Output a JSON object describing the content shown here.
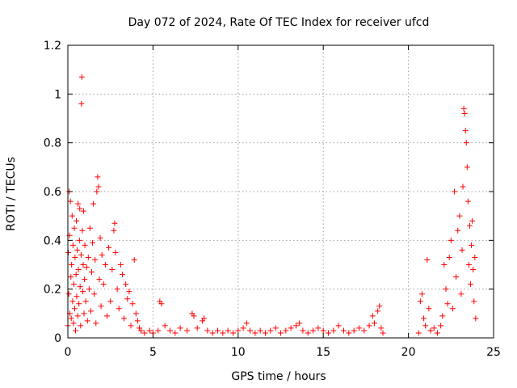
{
  "chart_data": {
    "type": "scatter",
    "title": "Day 072 of 2024, Rate Of TEC Index for receiver ufcd",
    "xlabel": "GPS time / hours",
    "ylabel": "ROTI / TECUs",
    "xlim": [
      0,
      25
    ],
    "ylim": [
      0,
      1.2
    ],
    "xticks": [
      0,
      5,
      10,
      15,
      20,
      25
    ],
    "yticks": [
      0,
      0.2,
      0.4,
      0.6,
      0.8,
      1,
      1.2
    ],
    "xtick_labels": [
      "0",
      "5",
      "10",
      "15",
      "20",
      "25"
    ],
    "ytick_labels": [
      "0",
      "0.2",
      "0.4",
      "0.6",
      "0.8",
      "1",
      "1.2"
    ],
    "grid": true,
    "marker": "+",
    "color": "#ff0000",
    "series": [
      {
        "name": "ROTI",
        "points": [
          [
            0.0,
            0.05
          ],
          [
            0.03,
            0.35
          ],
          [
            0.05,
            0.18
          ],
          [
            0.08,
            0.6
          ],
          [
            0.1,
            0.42
          ],
          [
            0.12,
            0.1
          ],
          [
            0.15,
            0.56
          ],
          [
            0.18,
            0.25
          ],
          [
            0.2,
            0.08
          ],
          [
            0.22,
            0.3
          ],
          [
            0.25,
            0.5
          ],
          [
            0.28,
            0.15
          ],
          [
            0.3,
            0.38
          ],
          [
            0.33,
            0.06
          ],
          [
            0.35,
            0.22
          ],
          [
            0.38,
            0.45
          ],
          [
            0.4,
            0.12
          ],
          [
            0.42,
            0.33
          ],
          [
            0.45,
            0.03
          ],
          [
            0.48,
            0.26
          ],
          [
            0.5,
            0.48
          ],
          [
            0.52,
            0.17
          ],
          [
            0.55,
            0.36
          ],
          [
            0.58,
            0.09
          ],
          [
            0.6,
            0.55
          ],
          [
            0.62,
            0.28
          ],
          [
            0.65,
            0.14
          ],
          [
            0.68,
            0.4
          ],
          [
            0.7,
            0.53
          ],
          [
            0.72,
            0.21
          ],
          [
            0.75,
            0.05
          ],
          [
            0.78,
            0.34
          ],
          [
            0.8,
            0.96
          ],
          [
            0.82,
            1.07
          ],
          [
            0.85,
            0.44
          ],
          [
            0.88,
            0.19
          ],
          [
            0.9,
            0.3
          ],
          [
            0.92,
            0.52
          ],
          [
            0.95,
            0.1
          ],
          [
            0.98,
            0.24
          ],
          [
            1.0,
            0.38
          ],
          [
            1.05,
            0.15
          ],
          [
            1.1,
            0.29
          ],
          [
            1.15,
            0.07
          ],
          [
            1.2,
            0.33
          ],
          [
            1.25,
            0.2
          ],
          [
            1.3,
            0.45
          ],
          [
            1.35,
            0.11
          ],
          [
            1.4,
            0.27
          ],
          [
            1.45,
            0.39
          ],
          [
            1.5,
            0.55
          ],
          [
            1.55,
            0.18
          ],
          [
            1.6,
            0.32
          ],
          [
            1.65,
            0.06
          ],
          [
            1.7,
            0.6
          ],
          [
            1.75,
            0.66
          ],
          [
            1.8,
            0.62
          ],
          [
            1.85,
            0.24
          ],
          [
            1.9,
            0.41
          ],
          [
            1.95,
            0.13
          ],
          [
            2.0,
            0.34
          ],
          [
            2.1,
            0.22
          ],
          [
            2.2,
            0.3
          ],
          [
            2.3,
            0.09
          ],
          [
            2.4,
            0.37
          ],
          [
            2.5,
            0.15
          ],
          [
            2.6,
            0.28
          ],
          [
            2.7,
            0.44
          ],
          [
            2.75,
            0.47
          ],
          [
            2.8,
            0.35
          ],
          [
            2.9,
            0.2
          ],
          [
            3.0,
            0.12
          ],
          [
            3.1,
            0.3
          ],
          [
            3.2,
            0.26
          ],
          [
            3.3,
            0.08
          ],
          [
            3.4,
            0.22
          ],
          [
            3.5,
            0.16
          ],
          [
            3.6,
            0.19
          ],
          [
            3.7,
            0.05
          ],
          [
            3.8,
            0.14
          ],
          [
            3.9,
            0.32
          ],
          [
            4.0,
            0.1
          ],
          [
            4.1,
            0.07
          ],
          [
            4.2,
            0.04
          ],
          [
            4.3,
            0.03
          ],
          [
            4.5,
            0.02
          ],
          [
            4.8,
            0.03
          ],
          [
            5.0,
            0.02
          ],
          [
            5.3,
            0.03
          ],
          [
            5.4,
            0.15
          ],
          [
            5.5,
            0.14
          ],
          [
            5.7,
            0.05
          ],
          [
            6.0,
            0.03
          ],
          [
            6.3,
            0.02
          ],
          [
            6.6,
            0.04
          ],
          [
            7.0,
            0.03
          ],
          [
            7.3,
            0.1
          ],
          [
            7.4,
            0.09
          ],
          [
            7.6,
            0.04
          ],
          [
            7.9,
            0.07
          ],
          [
            8.0,
            0.08
          ],
          [
            8.2,
            0.03
          ],
          [
            8.5,
            0.02
          ],
          [
            8.8,
            0.03
          ],
          [
            9.1,
            0.02
          ],
          [
            9.4,
            0.03
          ],
          [
            9.7,
            0.02
          ],
          [
            10.0,
            0.03
          ],
          [
            10.3,
            0.04
          ],
          [
            10.5,
            0.06
          ],
          [
            10.7,
            0.03
          ],
          [
            11.0,
            0.02
          ],
          [
            11.3,
            0.03
          ],
          [
            11.6,
            0.02
          ],
          [
            11.9,
            0.03
          ],
          [
            12.2,
            0.04
          ],
          [
            12.5,
            0.02
          ],
          [
            12.8,
            0.03
          ],
          [
            13.1,
            0.04
          ],
          [
            13.4,
            0.05
          ],
          [
            13.6,
            0.06
          ],
          [
            13.8,
            0.03
          ],
          [
            14.1,
            0.02
          ],
          [
            14.4,
            0.03
          ],
          [
            14.7,
            0.04
          ],
          [
            15.0,
            0.03
          ],
          [
            15.3,
            0.02
          ],
          [
            15.6,
            0.03
          ],
          [
            15.9,
            0.05
          ],
          [
            16.2,
            0.03
          ],
          [
            16.5,
            0.02
          ],
          [
            16.8,
            0.03
          ],
          [
            17.1,
            0.04
          ],
          [
            17.4,
            0.03
          ],
          [
            17.7,
            0.05
          ],
          [
            17.9,
            0.09
          ],
          [
            18.0,
            0.06
          ],
          [
            18.2,
            0.11
          ],
          [
            18.3,
            0.13
          ],
          [
            18.4,
            0.04
          ],
          [
            18.5,
            0.02
          ],
          [
            20.6,
            0.02
          ],
          [
            20.7,
            0.15
          ],
          [
            20.8,
            0.18
          ],
          [
            20.9,
            0.08
          ],
          [
            21.0,
            0.05
          ],
          [
            21.1,
            0.32
          ],
          [
            21.2,
            0.12
          ],
          [
            21.3,
            0.03
          ],
          [
            21.5,
            0.04
          ],
          [
            21.7,
            0.02
          ],
          [
            21.9,
            0.05
          ],
          [
            22.0,
            0.09
          ],
          [
            22.1,
            0.3
          ],
          [
            22.2,
            0.2
          ],
          [
            22.3,
            0.14
          ],
          [
            22.4,
            0.33
          ],
          [
            22.5,
            0.4
          ],
          [
            22.6,
            0.12
          ],
          [
            22.7,
            0.6
          ],
          [
            22.8,
            0.25
          ],
          [
            22.9,
            0.44
          ],
          [
            23.0,
            0.5
          ],
          [
            23.1,
            0.18
          ],
          [
            23.15,
            0.36
          ],
          [
            23.2,
            0.62
          ],
          [
            23.25,
            0.94
          ],
          [
            23.3,
            0.92
          ],
          [
            23.35,
            0.85
          ],
          [
            23.4,
            0.8
          ],
          [
            23.45,
            0.7
          ],
          [
            23.5,
            0.56
          ],
          [
            23.55,
            0.3
          ],
          [
            23.6,
            0.46
          ],
          [
            23.65,
            0.22
          ],
          [
            23.7,
            0.38
          ],
          [
            23.75,
            0.48
          ],
          [
            23.8,
            0.28
          ],
          [
            23.85,
            0.15
          ],
          [
            23.9,
            0.33
          ],
          [
            23.95,
            0.08
          ]
        ]
      }
    ]
  }
}
